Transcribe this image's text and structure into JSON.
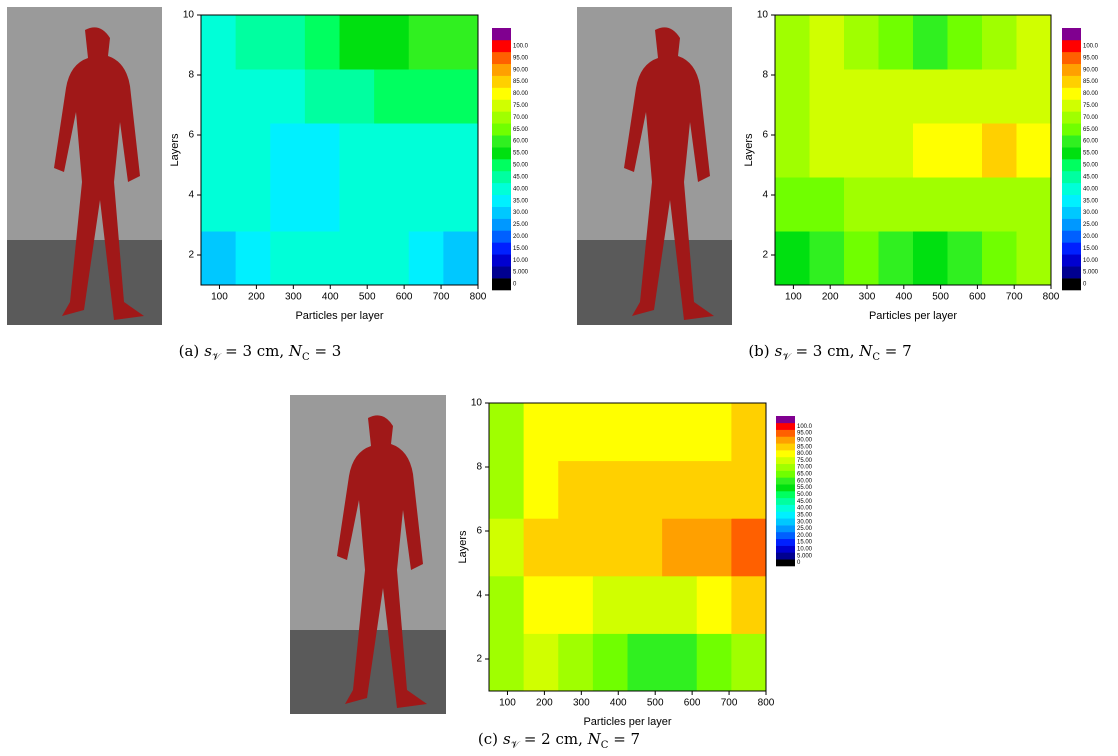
{
  "chart_data": [
    {
      "type": "contour",
      "xlabel": "Particles per layer",
      "ylabel": "Layers",
      "xlim": [
        50,
        800
      ],
      "ylim": [
        1,
        10
      ],
      "xticks": [
        100,
        200,
        300,
        400,
        500,
        600,
        700,
        800
      ],
      "yticks": [
        2,
        4,
        6,
        8,
        10
      ],
      "z": [
        [
          30,
          35,
          40,
          40,
          40,
          40,
          35,
          30
        ],
        [
          40,
          40,
          35,
          35,
          40,
          40,
          40,
          40
        ],
        [
          40,
          40,
          35,
          35,
          40,
          40,
          40,
          40
        ],
        [
          40,
          40,
          40,
          45,
          45,
          50,
          50,
          50
        ],
        [
          40,
          45,
          45,
          50,
          55,
          55,
          60,
          60
        ]
      ]
    },
    {
      "type": "contour",
      "xlabel": "Particles per layer",
      "ylabel": "Layers",
      "xlim": [
        50,
        800
      ],
      "ylim": [
        1,
        10
      ],
      "xticks": [
        100,
        200,
        300,
        400,
        500,
        600,
        700,
        800
      ],
      "yticks": [
        2,
        4,
        6,
        8,
        10
      ],
      "z": [
        [
          55,
          60,
          65,
          60,
          55,
          60,
          65,
          70
        ],
        [
          65,
          65,
          70,
          70,
          70,
          70,
          70,
          70
        ],
        [
          70,
          75,
          75,
          75,
          80,
          80,
          85,
          80
        ],
        [
          70,
          75,
          75,
          75,
          75,
          75,
          75,
          75
        ],
        [
          70,
          75,
          70,
          65,
          60,
          65,
          70,
          75
        ]
      ]
    },
    {
      "type": "contour",
      "xlabel": "Particles per layer",
      "ylabel": "Layers",
      "xlim": [
        50,
        800
      ],
      "ylim": [
        1,
        10
      ],
      "xticks": [
        100,
        200,
        300,
        400,
        500,
        600,
        700,
        800
      ],
      "yticks": [
        2,
        4,
        6,
        8,
        10
      ],
      "z": [
        [
          70,
          75,
          70,
          65,
          60,
          60,
          65,
          70
        ],
        [
          70,
          80,
          80,
          75,
          75,
          75,
          80,
          85
        ],
        [
          75,
          85,
          85,
          85,
          85,
          90,
          90,
          95
        ],
        [
          70,
          80,
          85,
          85,
          85,
          85,
          85,
          85
        ],
        [
          70,
          80,
          80,
          80,
          80,
          80,
          80,
          85
        ]
      ]
    }
  ],
  "colorbar": {
    "levels": [
      0,
      {
        "value": 5,
        "label": "5.000"
      },
      {
        "value": 10,
        "label": "10.00"
      },
      {
        "value": 15,
        "label": "15.00"
      },
      {
        "value": 20,
        "label": "20.00"
      },
      {
        "value": 25,
        "label": "25.00"
      },
      {
        "value": 30,
        "label": "30.00"
      },
      {
        "value": 35,
        "label": "35.00"
      },
      {
        "value": 40,
        "label": "40.00"
      },
      {
        "value": 45,
        "label": "45.00"
      },
      {
        "value": 50,
        "label": "50.00"
      },
      {
        "value": 55,
        "label": "55.00"
      },
      {
        "value": 60,
        "label": "60.00"
      },
      {
        "value": 65,
        "label": "65.00"
      },
      {
        "value": 70,
        "label": "70.00"
      },
      {
        "value": 75,
        "label": "75.00"
      },
      {
        "value": 80,
        "label": "80.00"
      },
      {
        "value": 85,
        "label": "85.00"
      },
      {
        "value": 90,
        "label": "90.00"
      },
      {
        "value": 95,
        "label": "95.00"
      },
      {
        "value": 100,
        "label": "100.0"
      }
    ],
    "colors": [
      "#000000",
      "#000090",
      "#0000d0",
      "#0020ff",
      "#0060ff",
      "#0098ff",
      "#00c8ff",
      "#00f0ff",
      "#00ffd8",
      "#00ffa0",
      "#00ff60",
      "#00e010",
      "#30f020",
      "#70ff00",
      "#a0ff00",
      "#d0ff00",
      "#ffff00",
      "#ffd000",
      "#ffa000",
      "#ff6000",
      "#ff0000"
    ],
    "top_color": "#800090"
  },
  "captions": [
    {
      "label": "(a)",
      "parts": [
        "s",
        "𝒱",
        " = 3 cm, ",
        "N",
        "C",
        " = 3"
      ]
    },
    {
      "label": "(b)",
      "parts": [
        "s",
        "𝒱",
        " = 3 cm, ",
        "N",
        "C",
        " = 7"
      ]
    },
    {
      "label": "(c)",
      "parts": [
        "s",
        "𝒱",
        " = 2 cm, ",
        "N",
        "C",
        " = 7"
      ]
    }
  ]
}
